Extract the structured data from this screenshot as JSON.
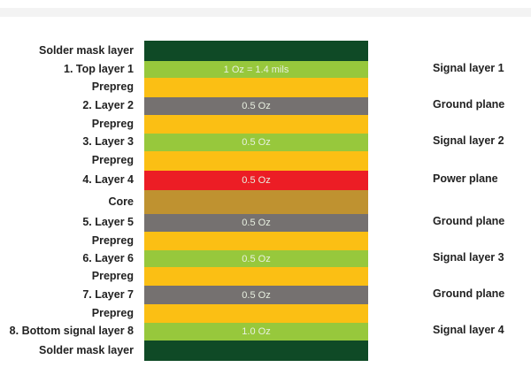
{
  "layers": [
    {
      "left": "Solder mask layer",
      "center": "",
      "right": "",
      "color": "#0f4a26"
    },
    {
      "left": "1. Top layer 1",
      "center": "1 Oz = 1.4 mils",
      "right": "Signal layer 1",
      "color": "#97c83c"
    },
    {
      "left": "Prepreg",
      "center": "",
      "right": "",
      "color": "#fbbf14"
    },
    {
      "left": "2. Layer 2",
      "center": "0.5 Oz",
      "right": "Ground plane",
      "color": "#757170"
    },
    {
      "left": "Prepreg",
      "center": "",
      "right": "",
      "color": "#fbbf14"
    },
    {
      "left": "3. Layer 3",
      "center": "0.5 Oz",
      "right": "Signal layer 2",
      "color": "#97c83c"
    },
    {
      "left": "Prepreg",
      "center": "",
      "right": "",
      "color": "#fbbf14"
    },
    {
      "left": "4. Layer 4",
      "center": "0.5 Oz",
      "right": "Power plane",
      "color": "#ec1d25"
    },
    {
      "left": "Core",
      "center": "",
      "right": "",
      "color": "#bf9230"
    },
    {
      "left": "5. Layer 5",
      "center": "0.5 Oz",
      "right": "Ground plane",
      "color": "#757170"
    },
    {
      "left": "Prepreg",
      "center": "",
      "right": "",
      "color": "#fbbf14"
    },
    {
      "left": "6. Layer 6",
      "center": "0.5 Oz",
      "right": "Signal layer 3",
      "color": "#97c83c"
    },
    {
      "left": "Prepreg",
      "center": "",
      "right": "",
      "color": "#fbbf14"
    },
    {
      "left": "7. Layer 7",
      "center": "0.5 Oz",
      "right": "Ground plane",
      "color": "#757170"
    },
    {
      "left": "Prepreg",
      "center": "",
      "right": "",
      "color": "#fbbf14"
    },
    {
      "left": "8. Bottom signal layer 8",
      "center": "1.0 Oz",
      "right": "Signal layer 4",
      "color": "#97c83c"
    },
    {
      "left": "Solder mask layer",
      "center": "",
      "right": "",
      "color": "#0f4a26"
    }
  ]
}
